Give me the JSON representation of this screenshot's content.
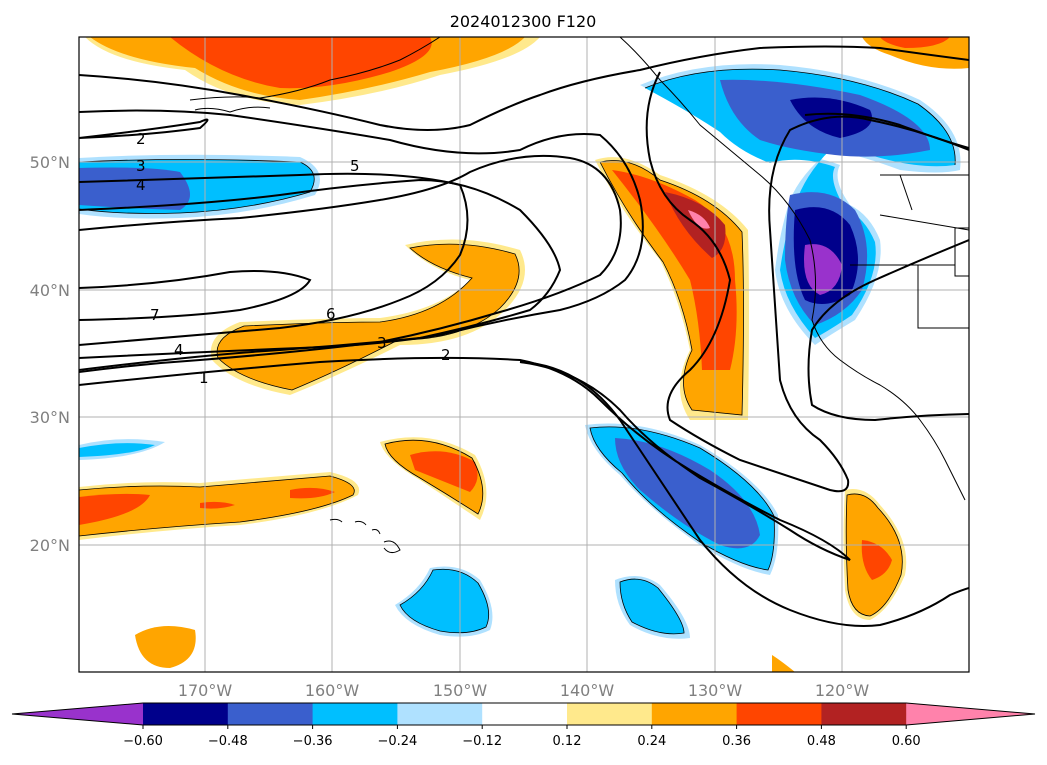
{
  "title": "2024012300 F120",
  "lat_labels": [
    "50°N",
    "40°N",
    "30°N",
    "20°N"
  ],
  "lon_labels": [
    "170°W",
    "160°W",
    "150°W",
    "140°W",
    "130°W",
    "120°W"
  ],
  "colorbar": {
    "ticks": [
      "−0.60",
      "−0.48",
      "−0.36",
      "−0.24",
      "−0.12",
      "0.12",
      "0.24",
      "0.36",
      "0.48",
      "0.60"
    ],
    "colors": [
      "#9932cc",
      "#00008b",
      "#3a5fcd",
      "#00bfff",
      "#afe1ff",
      "#ffffff",
      "#ffe98c",
      "#ffa500",
      "#ff4500",
      "#b22222",
      "#ff82ab"
    ]
  },
  "contour_labels": [
    "2",
    "3",
    "4",
    "5",
    "7",
    "6",
    "4",
    "3",
    "2",
    "1"
  ]
}
